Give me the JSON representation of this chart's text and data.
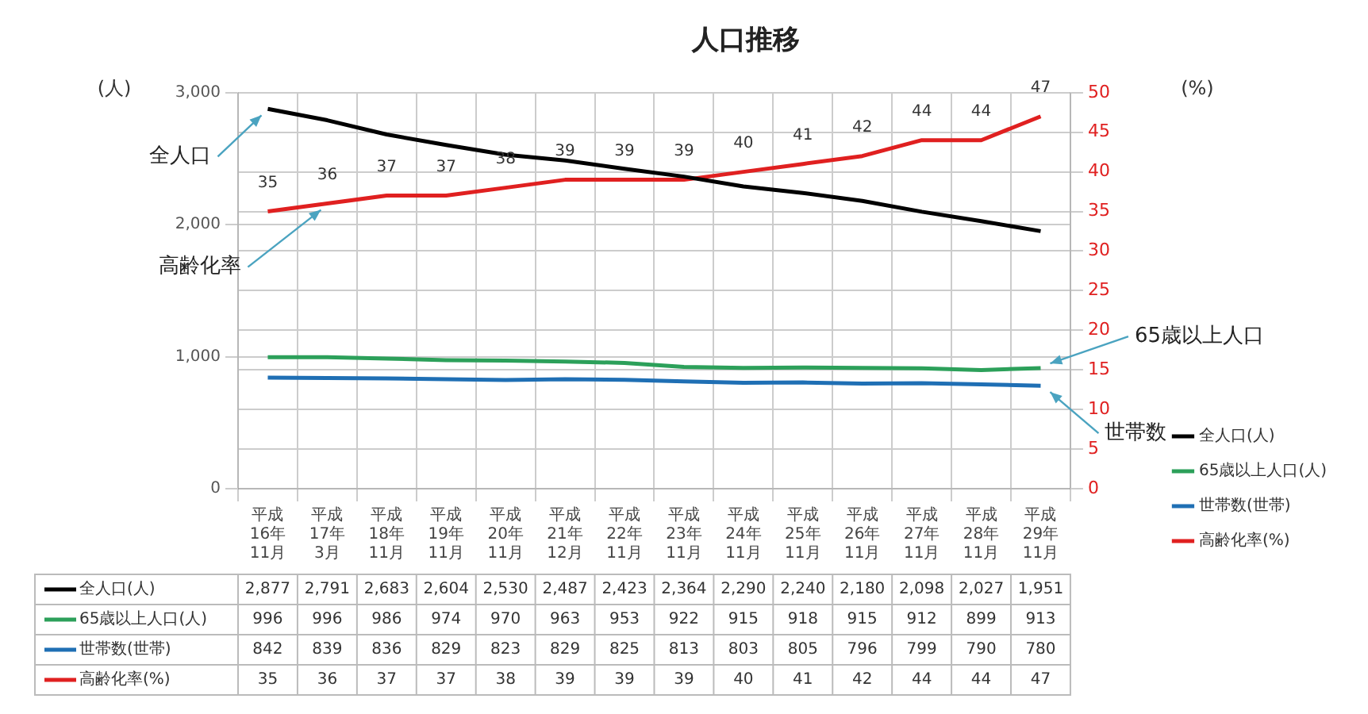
{
  "chart_data": {
    "type": "line",
    "title": "人口推移",
    "ylabel": "(人)",
    "y2label": "(%)",
    "categories": [
      "平成\n16年\n11月",
      "平成\n17年\n3月",
      "平成\n18年\n11月",
      "平成\n19年\n11月",
      "平成\n20年\n11月",
      "平成\n21年\n12月",
      "平成\n22年\n11月",
      "平成\n23年\n11月",
      "平成\n24年\n11月",
      "平成\n25年\n11月",
      "平成\n26年\n11月",
      "平成\n27年\n11月",
      "平成\n28年\n11月",
      "平成\n29年\n11月"
    ],
    "series": [
      {
        "name": "全人口(人)",
        "color": "#000000",
        "values": [
          2877,
          2791,
          2683,
          2604,
          2530,
          2487,
          2423,
          2364,
          2290,
          2240,
          2180,
          2098,
          2027,
          1951
        ],
        "value_labels": [
          "2,877",
          "2,791",
          "2,683",
          "2,604",
          "2,530",
          "2,487",
          "2,423",
          "2,364",
          "2,290",
          "2,240",
          "2,180",
          "2,098",
          "2,027",
          "1,951"
        ]
      },
      {
        "name": "65歳以上人口(人)",
        "color": "#2ca05a",
        "values": [
          996,
          996,
          986,
          974,
          970,
          963,
          953,
          922,
          915,
          918,
          915,
          912,
          899,
          913
        ],
        "value_labels": [
          "996",
          "996",
          "986",
          "974",
          "970",
          "963",
          "953",
          "922",
          "915",
          "918",
          "915",
          "912",
          "899",
          "913"
        ]
      },
      {
        "name": "世帯数(世帯)",
        "color": "#1f6fb4",
        "values": [
          842,
          839,
          836,
          829,
          823,
          829,
          825,
          813,
          803,
          805,
          796,
          799,
          790,
          780
        ],
        "value_labels": [
          "842",
          "839",
          "836",
          "829",
          "823",
          "829",
          "825",
          "813",
          "803",
          "805",
          "796",
          "799",
          "790",
          "780"
        ]
      },
      {
        "name": "高齢化率(%)",
        "color": "#e02020",
        "axis": "y2",
        "values": [
          35,
          36,
          37,
          37,
          38,
          39,
          39,
          39,
          40,
          41,
          42,
          44,
          44,
          47
        ],
        "value_labels": [
          "35",
          "36",
          "37",
          "37",
          "38",
          "39",
          "39",
          "39",
          "40",
          "41",
          "42",
          "44",
          "44",
          "47"
        ]
      }
    ],
    "ylim": [
      0,
      3000
    ],
    "yticks": [
      0,
      {
        "value": 1000,
        "label": "1,000"
      },
      {
        "value": 2000,
        "label": "2,000"
      },
      {
        "value": 3000,
        "label": "3,000"
      }
    ],
    "y2lim": [
      0,
      50
    ],
    "y2ticks": [
      0,
      5,
      10,
      15,
      20,
      25,
      30,
      35,
      40,
      45,
      50
    ],
    "grid": true,
    "legend": "right",
    "annotations": [
      {
        "text": "全人口",
        "x": "平成\n16年\n11月",
        "y": 2877
      },
      {
        "text": "高齢化率",
        "x": "平成\n17年\n3月",
        "y": 2160
      },
      {
        "text": "65歳以上人口",
        "x": "平成\n29年\n11月",
        "y": 913
      },
      {
        "text": "世帯数",
        "x": "平成\n29年\n11月",
        "y": 780
      }
    ]
  }
}
